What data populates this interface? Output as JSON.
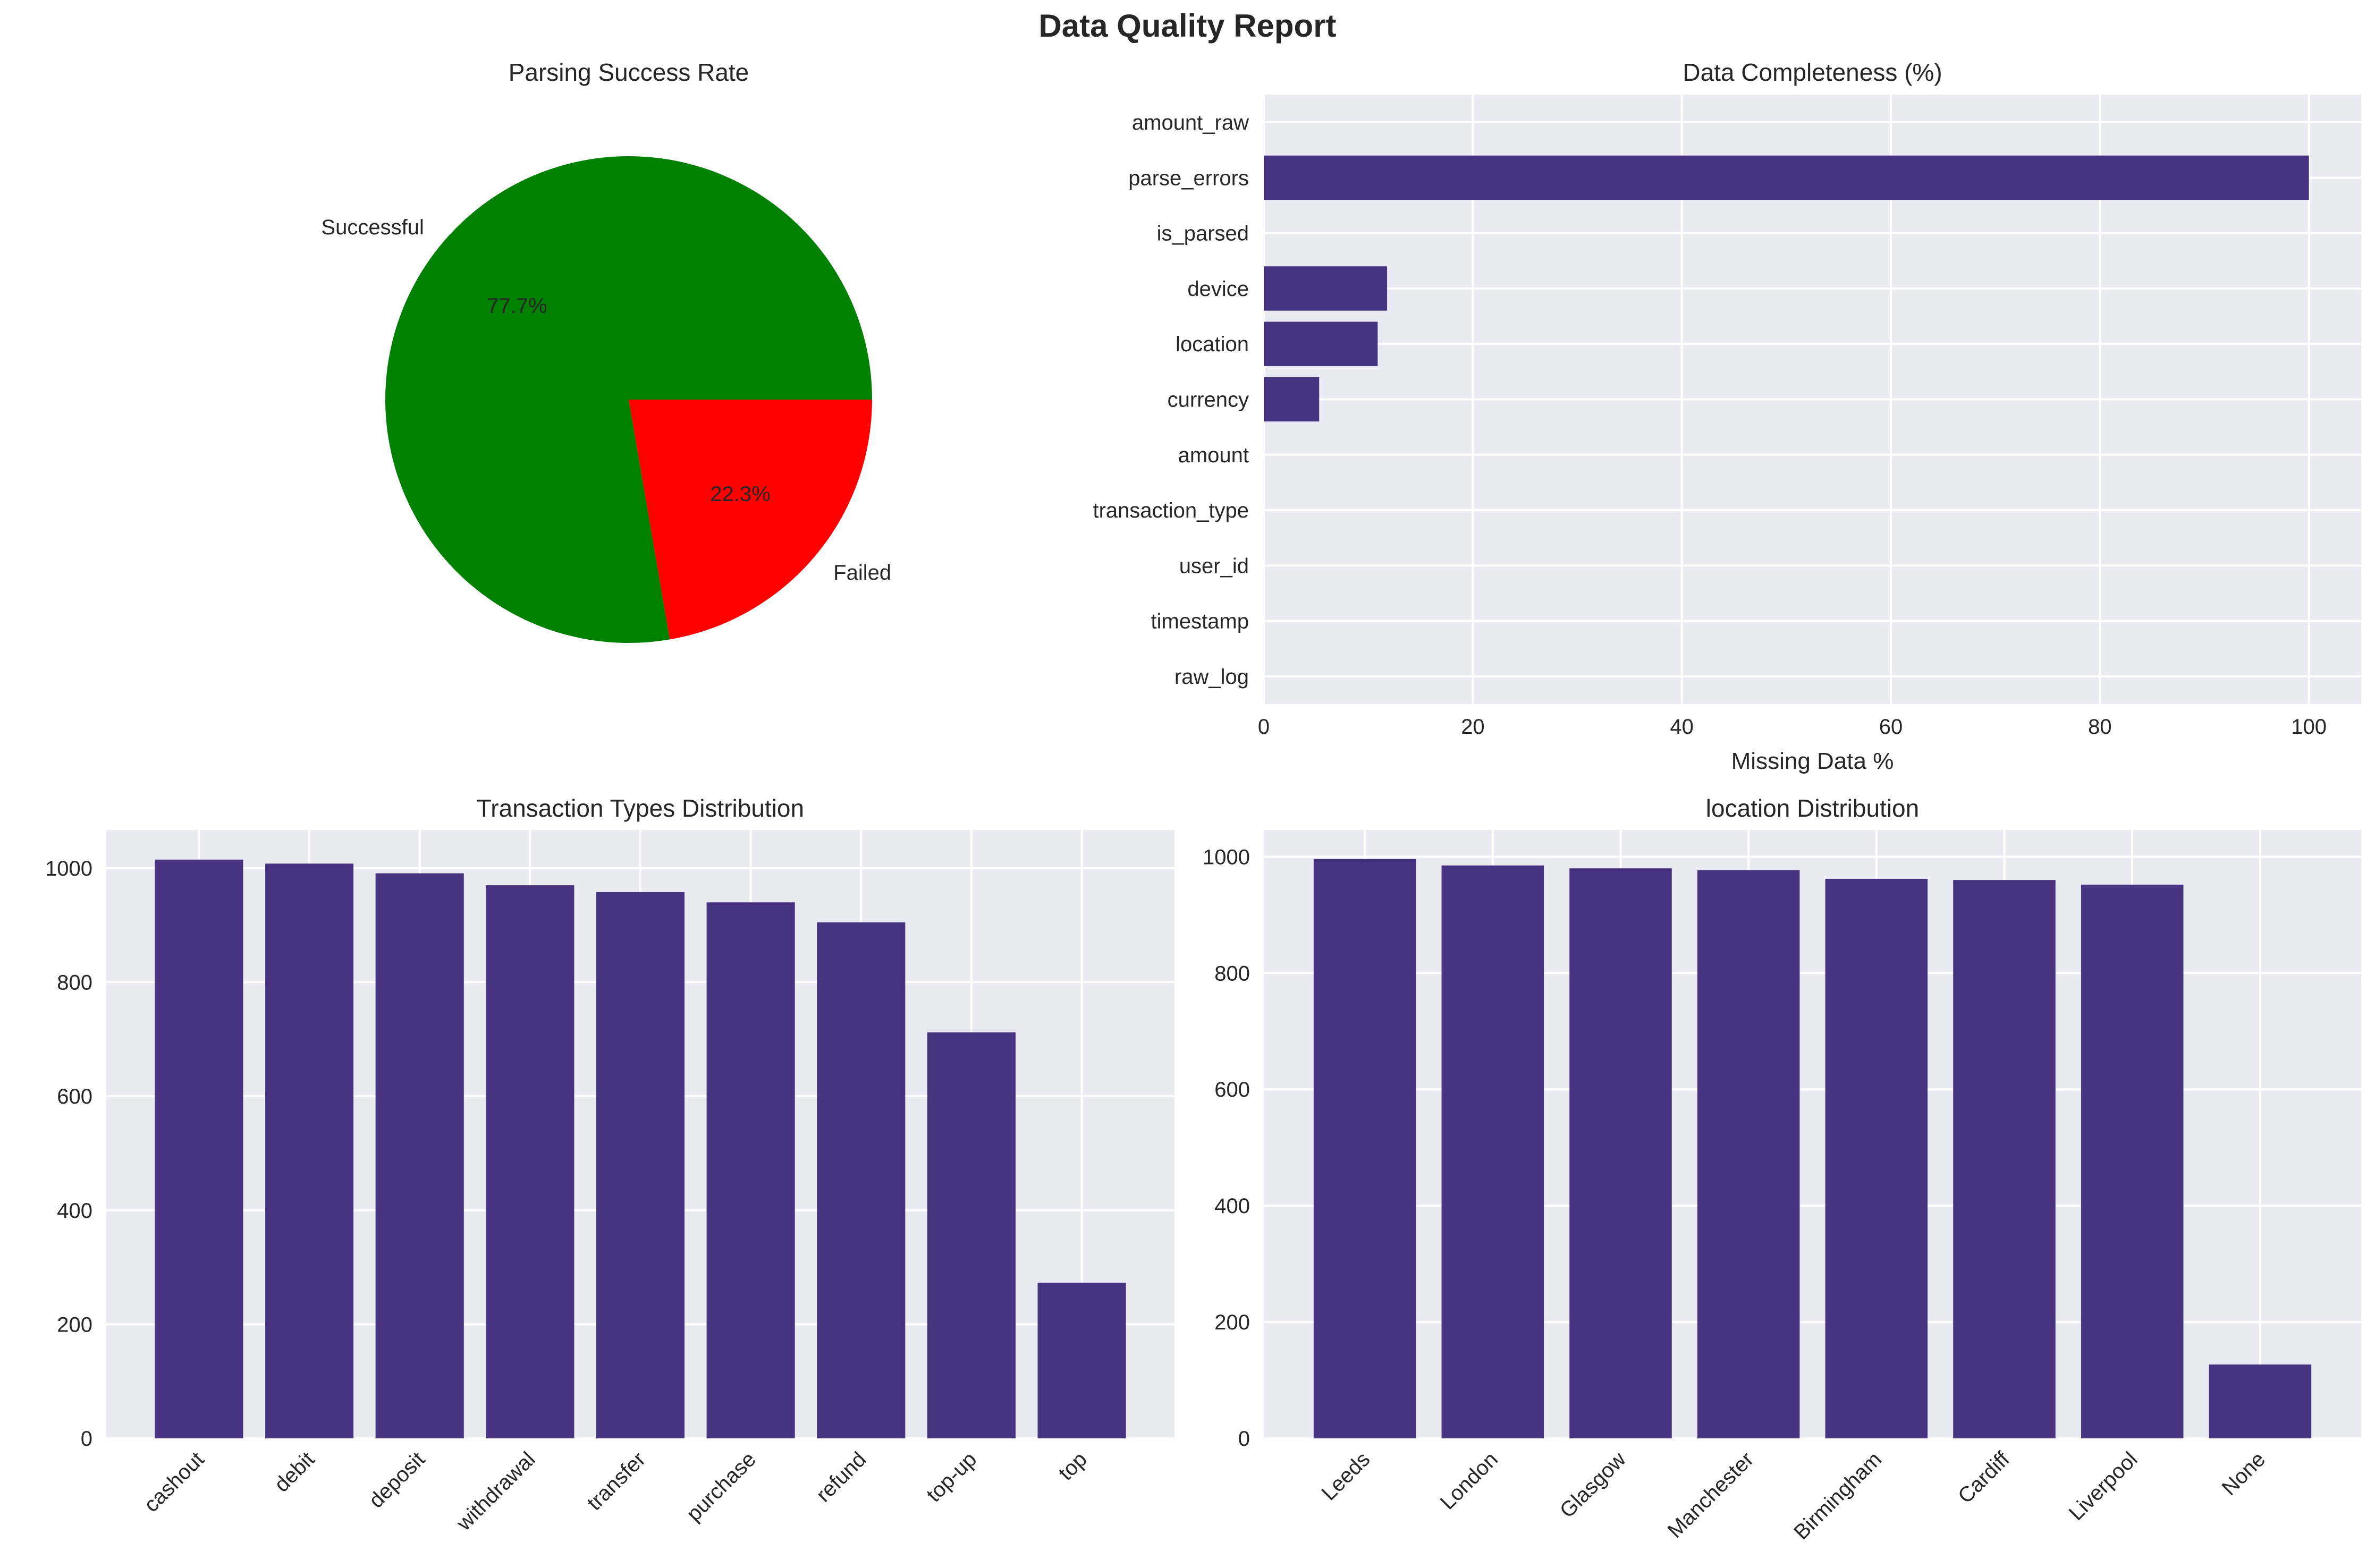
{
  "figure": {
    "title": "Data Quality Report"
  },
  "colors": {
    "bar": "#47337f",
    "axes_bg": "#eaeaf2",
    "grid": "#ffffff",
    "pie_success": "#008000",
    "pie_failed": "#ff0000"
  },
  "chart_data": [
    {
      "type": "pie",
      "title": "Parsing Success Rate",
      "labels": [
        "Successful",
        "Failed"
      ],
      "values": [
        77.7,
        22.3
      ],
      "autopct": [
        "77.7%",
        "22.3%"
      ],
      "colors": [
        "#008000",
        "#ff0000"
      ]
    },
    {
      "type": "bar",
      "orientation": "horizontal",
      "title": "Data Completeness (%)",
      "xlabel": "Missing Data %",
      "ylabel": "",
      "categories": [
        "amount_raw",
        "parse_errors",
        "is_parsed",
        "device",
        "location",
        "currency",
        "amount",
        "transaction_type",
        "user_id",
        "timestamp",
        "raw_log"
      ],
      "values": [
        0,
        100,
        0,
        11.8,
        10.9,
        5.3,
        0,
        0,
        0,
        0,
        0
      ],
      "xlim": [
        0,
        105
      ],
      "xticks": [
        0,
        20,
        40,
        60,
        80,
        100
      ],
      "grid": true
    },
    {
      "type": "bar",
      "title": "Transaction Types Distribution",
      "xlabel": "",
      "ylabel": "",
      "categories": [
        "cashout",
        "debit",
        "deposit",
        "withdrawal",
        "transfer",
        "purchase",
        "refund",
        "top-up",
        "top"
      ],
      "values": [
        1015,
        1008,
        991,
        970,
        958,
        940,
        905,
        712,
        273
      ],
      "ylim": [
        0,
        1067
      ],
      "yticks": [
        0,
        200,
        400,
        600,
        800,
        1000
      ],
      "grid": true
    },
    {
      "type": "bar",
      "title": "location Distribution",
      "xlabel": "",
      "ylabel": "",
      "categories": [
        "Leeds",
        "London",
        "Glasgow",
        "Manchester",
        "Birmingham",
        "Cardiff",
        "Liverpool",
        "None"
      ],
      "values": [
        996,
        985,
        980,
        977,
        962,
        960,
        952,
        127
      ],
      "ylim": [
        0,
        1046
      ],
      "yticks": [
        0,
        200,
        400,
        600,
        800,
        1000
      ],
      "grid": true
    }
  ]
}
